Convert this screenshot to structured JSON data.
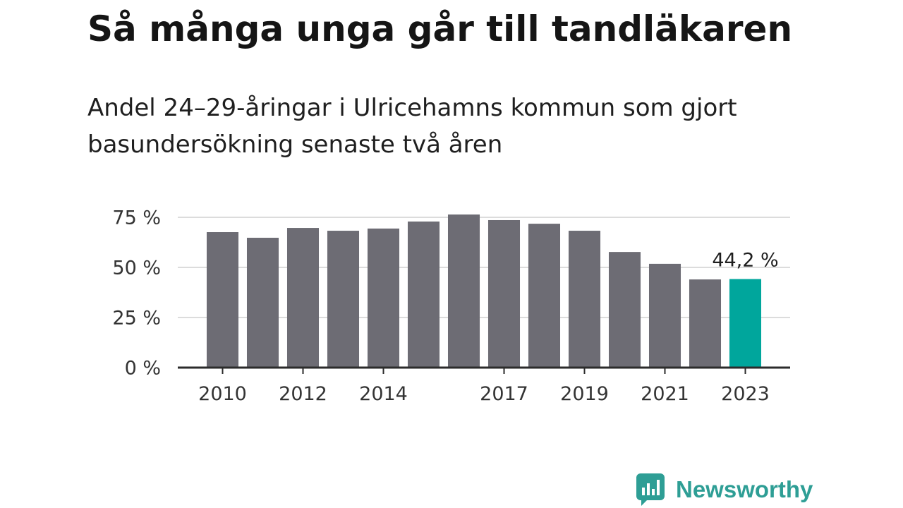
{
  "chart_data": {
    "type": "bar",
    "title": "Så många unga går till tandläkaren",
    "subtitle": "Andel 24–29-åringar i Ulricehamns kommun som gjort basundersökning senaste två åren",
    "x": [
      2010,
      2011,
      2012,
      2013,
      2014,
      2015,
      2016,
      2017,
      2018,
      2019,
      2020,
      2021,
      2022,
      2023
    ],
    "values": [
      67.6,
      64.8,
      69.7,
      68.3,
      69.4,
      72.9,
      76.4,
      73.6,
      71.8,
      68.3,
      57.7,
      51.8,
      44.0,
      44.2
    ],
    "x_ticks": [
      2010,
      2012,
      2014,
      2017,
      2019,
      2021,
      2023
    ],
    "x_tick_labels": [
      "2010",
      "2012",
      "2014",
      "2017",
      "2019",
      "2021",
      "2023"
    ],
    "y_ticks": [
      0,
      25,
      50,
      75
    ],
    "y_tick_labels": [
      "0 %",
      "25 %",
      "50 %",
      "75 %"
    ],
    "ylim": [
      0,
      80
    ],
    "grid": true,
    "legend": "none",
    "highlight": {
      "x": 2023,
      "label": "44,2 %"
    },
    "bar_color": "#6d6c74",
    "highlight_color": "#00a69c"
  },
  "branding": {
    "logo_text": "Newsworthy",
    "logo_icon": "newsworthy-bubble-chart-icon",
    "color": "#2e9e95"
  }
}
